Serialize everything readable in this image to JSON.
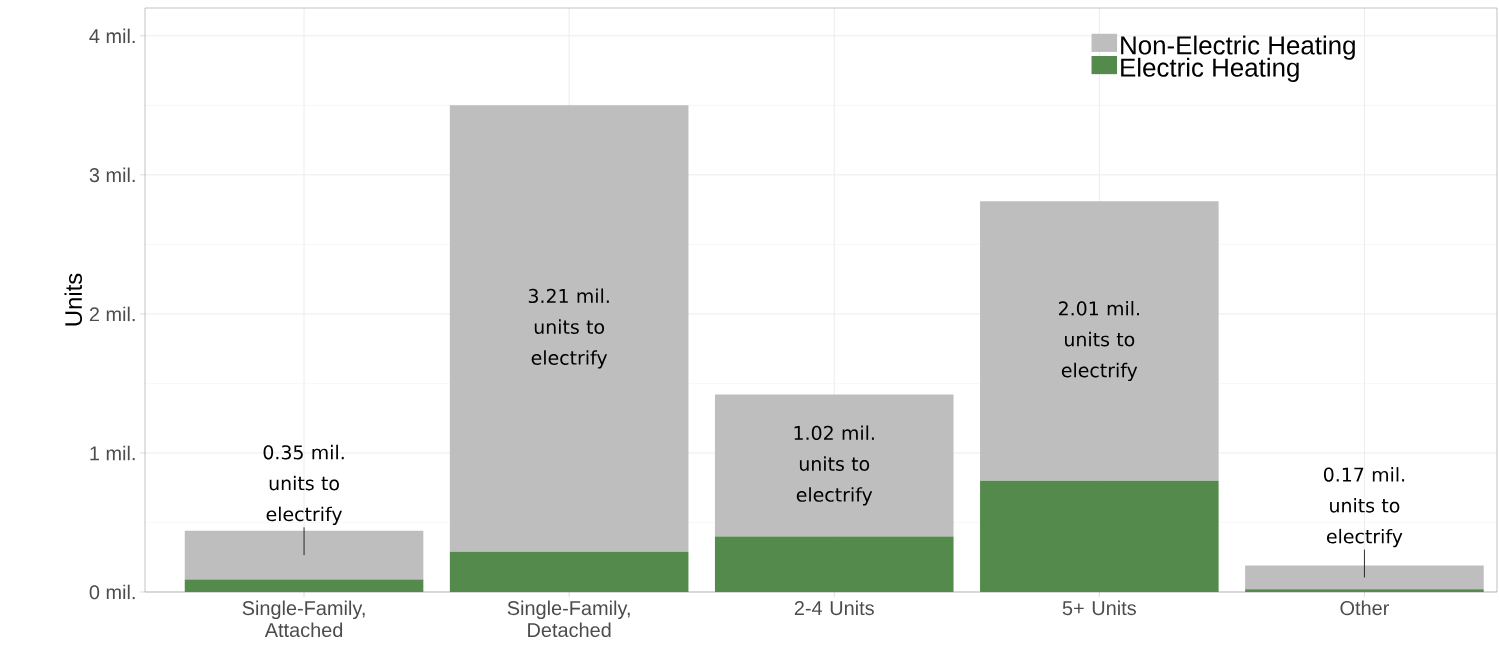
{
  "chart_data": {
    "type": "bar",
    "stacked": true,
    "ylabel": "Units",
    "categories": [
      "Single-Family, Attached",
      "Single-Family, Detached",
      "2-4 Units",
      "5+ Units",
      "Other"
    ],
    "series": [
      {
        "name": "Electric Heating",
        "color": "#558a4d",
        "values": [
          0.09,
          0.29,
          0.4,
          0.8,
          0.02
        ]
      },
      {
        "name": "Non-Electric Heating",
        "color": "#bebebe",
        "values": [
          0.35,
          3.21,
          1.02,
          2.01,
          0.17
        ],
        "value_labels": [
          "0.35 mil. units to electrify",
          "3.21 mil. units to electrify",
          "1.02 mil. units to electrify",
          "2.01 mil. units to electrify",
          "0.17 mil. units to electrify"
        ]
      }
    ],
    "ylim": [
      0,
      4.2
    ],
    "yticks": [
      {
        "value": 0,
        "label": "0 mil."
      },
      {
        "value": 1,
        "label": "1 mil."
      },
      {
        "value": 2,
        "label": "2 mil."
      },
      {
        "value": 3,
        "label": "3 mil."
      },
      {
        "value": 4,
        "label": "4 mil."
      }
    ],
    "grid": true,
    "legend": "top right"
  }
}
